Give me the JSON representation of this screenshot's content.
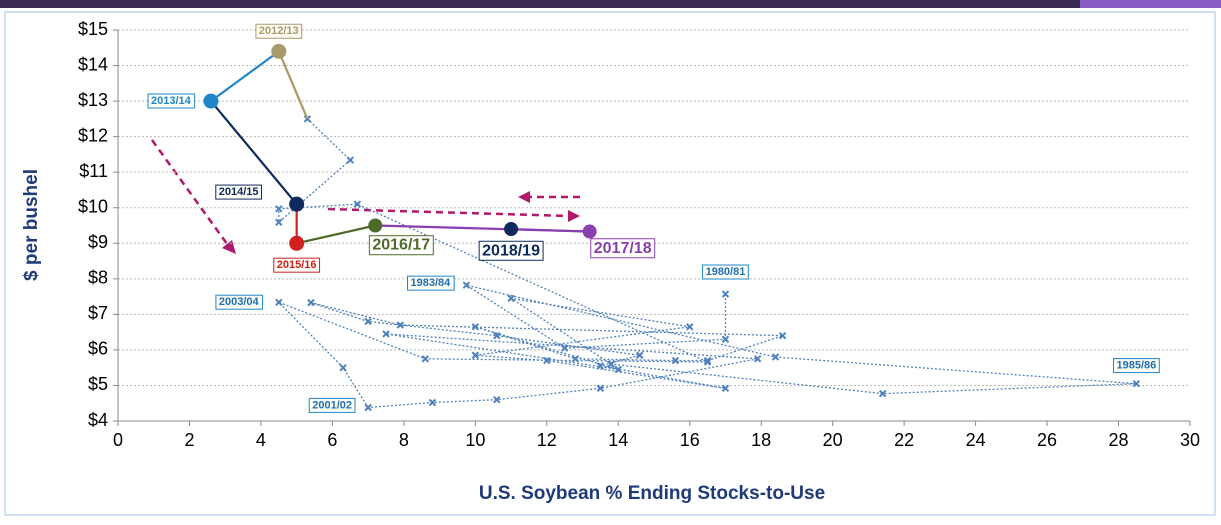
{
  "chart_data": {
    "type": "scatter",
    "xlabel": "U.S. Soybean % Ending Stocks-to-Use",
    "ylabel": "$ per bushel",
    "xlim": [
      0,
      30
    ],
    "xticks": [
      0,
      2,
      4,
      6,
      8,
      10,
      12,
      14,
      16,
      18,
      20,
      22,
      24,
      26,
      28,
      30
    ],
    "ylim": [
      4,
      15
    ],
    "yticks": [
      {
        "value": 4,
        "label": "$4"
      },
      {
        "value": 5,
        "label": "$5"
      },
      {
        "value": 6,
        "label": "$6"
      },
      {
        "value": 7,
        "label": "$7"
      },
      {
        "value": 8,
        "label": "$8"
      },
      {
        "value": 9,
        "label": "$9"
      },
      {
        "value": 10,
        "label": "$10"
      },
      {
        "value": 11,
        "label": "$11"
      },
      {
        "value": 12,
        "label": "$12"
      },
      {
        "value": 13,
        "label": "$13"
      },
      {
        "value": 14,
        "label": "$14"
      },
      {
        "value": 15,
        "label": "$15"
      }
    ],
    "grid": true,
    "series": [
      {
        "color": "#4f81bd",
        "x": [
          17.0,
          17.0,
          12.5,
          9.75,
          18.4,
          28.5,
          21.4,
          13.8,
          11.0,
          16.0,
          10.0,
          12.0,
          17.0,
          13.5,
          14.6,
          10.6,
          7.0,
          5.4,
          7.9,
          18.6,
          16.5,
          15.6,
          12.8,
          10.0,
          14.0,
          7.5,
          17.9,
          13.5,
          10.6,
          8.8,
          7.0,
          6.3,
          4.5,
          8.6,
          16.5,
          6.7,
          4.5,
          4.5,
          6.5,
          5.3
        ],
        "values": [
          7.57,
          6.3,
          6.05,
          7.82,
          5.8,
          5.05,
          4.77,
          5.6,
          7.45,
          6.65,
          5.85,
          5.7,
          4.92,
          5.55,
          5.85,
          6.4,
          6.8,
          7.33,
          6.7,
          6.4,
          5.7,
          5.7,
          5.75,
          6.65,
          5.45,
          6.45,
          5.75,
          4.92,
          4.6,
          4.52,
          4.38,
          5.5,
          7.34,
          5.75,
          5.66,
          10.1,
          9.97,
          9.59,
          11.34,
          12.5
        ],
        "labels": [
          "1980/81",
          null,
          null,
          "1983/84",
          null,
          "1985/86",
          null,
          null,
          null,
          null,
          null,
          null,
          null,
          null,
          null,
          null,
          null,
          null,
          null,
          null,
          null,
          null,
          null,
          null,
          null,
          null,
          null,
          null,
          null,
          null,
          "2001/02",
          null,
          "2003/04",
          null,
          null,
          null,
          null,
          null,
          null,
          null
        ]
      },
      {
        "x": [
          4.5,
          2.6,
          5.0,
          5.0,
          7.2,
          13.2,
          11.0
        ],
        "values": [
          14.4,
          13.0,
          10.1,
          9.0,
          9.5,
          9.33,
          9.4
        ],
        "labels": [
          "2012/13",
          "2013/14",
          "2014/15",
          "2015/16",
          "2016/17",
          "2017/18",
          "2018/19"
        ],
        "colors": [
          "#a89a6a",
          "#1f87c9",
          "#0d2a5e",
          "#d21f1f",
          "#4f6b2a",
          "#8a3fb0",
          "#0d2a5e"
        ],
        "segment_colors": [
          "#a89a6a",
          "#1f87c9",
          "#0d2a5e",
          "#d21f1f",
          "#4f6b2a",
          "#8a3fb0",
          "#8a3fb0"
        ]
      }
    ]
  }
}
